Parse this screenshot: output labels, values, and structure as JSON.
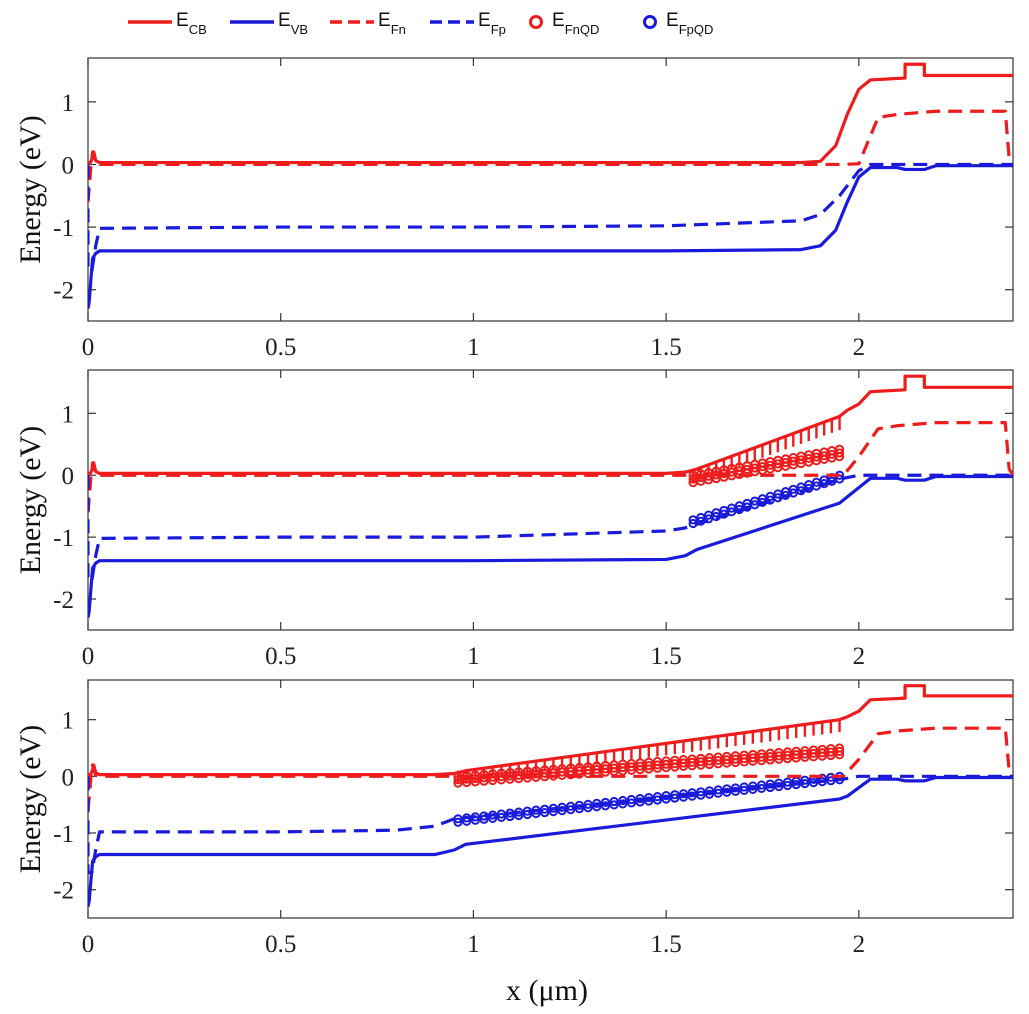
{
  "chart_data": {
    "type": "line",
    "title": "",
    "xlabel": "x (μm)",
    "ylabel": "Energy (eV)",
    "xlim": [
      0,
      2.4
    ],
    "ylim": [
      -2.5,
      1.7
    ],
    "x_ticks": [
      0,
      0.5,
      1,
      1.5,
      2
    ],
    "x_tick_labels": [
      "0",
      "0.5",
      "1",
      "1.5",
      "2"
    ],
    "y_ticks": [
      1,
      0,
      -1,
      -2
    ],
    "y_tick_labels": [
      "1",
      "0",
      "-1",
      "-2"
    ],
    "colors": {
      "cb": "#ee1c1c",
      "vb": "#1a1adc"
    },
    "legend": [
      {
        "base": "E",
        "sub": "CB",
        "style": "solid",
        "color": "#ee1c1c"
      },
      {
        "base": "E",
        "sub": "VB",
        "style": "solid",
        "color": "#1a1adc"
      },
      {
        "base": "E",
        "sub": "Fn",
        "style": "dashed",
        "color": "#ee1c1c"
      },
      {
        "base": "E",
        "sub": "Fp",
        "style": "dashed",
        "color": "#1a1adc"
      },
      {
        "base": "E",
        "sub": "FnQD",
        "style": "marker",
        "color": "#ee1c1c"
      },
      {
        "base": "E",
        "sub": "FpQD",
        "style": "marker",
        "color": "#1a1adc"
      }
    ],
    "panels": [
      {
        "series": [
          {
            "name": "E_CB",
            "x": [
              0,
              0.005,
              0.01,
              0.015,
              0.02,
              0.03,
              0.5,
              1.0,
              1.5,
              1.85,
              1.9,
              1.94,
              1.97,
              2.0,
              2.03,
              2.12,
              2.12,
              2.17,
              2.17,
              2.4
            ],
            "y": [
              0.03,
              0.02,
              0.08,
              0.2,
              0.06,
              0.03,
              0.03,
              0.03,
              0.03,
              0.03,
              0.05,
              0.3,
              0.8,
              1.2,
              1.35,
              1.38,
              1.6,
              1.6,
              1.42,
              1.42
            ]
          },
          {
            "name": "E_VB",
            "x": [
              0,
              0.003,
              0.008,
              0.012,
              0.02,
              0.03,
              0.5,
              1.0,
              1.5,
              1.85,
              1.9,
              1.94,
              1.97,
              2.0,
              2.03,
              2.06,
              2.1,
              2.12,
              2.17,
              2.2,
              2.4
            ],
            "y": [
              -2.3,
              -2.2,
              -1.8,
              -1.5,
              -1.42,
              -1.38,
              -1.38,
              -1.38,
              -1.38,
              -1.36,
              -1.3,
              -1.05,
              -0.6,
              -0.2,
              -0.05,
              -0.05,
              -0.05,
              -0.08,
              -0.08,
              -0.02,
              -0.02
            ]
          },
          {
            "name": "E_Fn",
            "x": [
              0,
              0.008,
              0.012,
              0.02,
              0.03,
              1.0,
              1.95,
              2.0,
              2.05,
              2.1,
              2.2,
              2.38,
              2.39,
              2.4
            ],
            "y": [
              -0.6,
              0.0,
              0.2,
              0.02,
              0.0,
              0.0,
              0.0,
              0.01,
              0.75,
              0.8,
              0.85,
              0.85,
              0.1,
              0.0
            ]
          },
          {
            "name": "E_Fp",
            "x": [
              0,
              0.0,
              0.01,
              0.02,
              0.03,
              0.5,
              1.0,
              1.5,
              1.85,
              1.9,
              1.95,
              2.0,
              2.03,
              2.1,
              2.4
            ],
            "y": [
              0.0,
              -1.7,
              -1.7,
              -1.3,
              -1.02,
              -1.0,
              -1.0,
              -0.98,
              -0.9,
              -0.8,
              -0.5,
              -0.1,
              0.0,
              0.0,
              0.0
            ]
          }
        ],
        "qd_region": null
      },
      {
        "series": [
          {
            "name": "E_CB",
            "x": [
              0,
              0.005,
              0.01,
              0.015,
              0.02,
              0.03,
              0.5,
              1.0,
              1.5,
              1.55,
              1.58,
              1.95,
              1.97,
              2.0,
              2.03,
              2.12,
              2.12,
              2.17,
              2.17,
              2.4
            ],
            "y": [
              0.03,
              0.02,
              0.08,
              0.2,
              0.06,
              0.03,
              0.03,
              0.03,
              0.03,
              0.05,
              0.1,
              0.95,
              1.05,
              1.15,
              1.35,
              1.38,
              1.6,
              1.6,
              1.42,
              1.42
            ]
          },
          {
            "name": "E_VB",
            "x": [
              0,
              0.003,
              0.008,
              0.012,
              0.02,
              0.03,
              0.5,
              1.0,
              1.5,
              1.55,
              1.58,
              1.95,
              1.97,
              2.0,
              2.03,
              2.06,
              2.1,
              2.12,
              2.17,
              2.2,
              2.4
            ],
            "y": [
              -2.3,
              -2.2,
              -1.8,
              -1.5,
              -1.42,
              -1.38,
              -1.38,
              -1.38,
              -1.36,
              -1.3,
              -1.2,
              -0.45,
              -0.35,
              -0.2,
              -0.05,
              -0.05,
              -0.05,
              -0.08,
              -0.08,
              -0.02,
              -0.02
            ]
          },
          {
            "name": "E_Fn",
            "x": [
              0,
              0.008,
              0.012,
              0.02,
              0.03,
              1.0,
              1.55,
              1.96,
              2.0,
              2.05,
              2.1,
              2.2,
              2.38,
              2.39,
              2.4
            ],
            "y": [
              -0.6,
              0.0,
              0.2,
              0.02,
              0.0,
              0.0,
              0.0,
              0.0,
              0.3,
              0.75,
              0.8,
              0.85,
              0.85,
              0.1,
              0.0
            ]
          },
          {
            "name": "E_Fp",
            "x": [
              0,
              0.0,
              0.01,
              0.02,
              0.03,
              0.5,
              1.0,
              1.5,
              1.55,
              1.96,
              2.0,
              2.03,
              2.1,
              2.4
            ],
            "y": [
              0.0,
              -1.7,
              -1.7,
              -1.3,
              -1.02,
              -1.0,
              -1.0,
              -0.9,
              -0.85,
              -0.05,
              0.0,
              0.0,
              0.0,
              0.0
            ]
          }
        ],
        "qd_region": {
          "x_start": 1.57,
          "x_end": 1.95,
          "count": 20,
          "fn_y_start": 0.0,
          "fn_y_end": 0.42,
          "fn_spread": 0.12,
          "fp_y_start": -0.72,
          "fp_y_end": 0.0,
          "cb_y_start": 0.1,
          "cb_y_end": 0.95
        }
      },
      {
        "series": [
          {
            "name": "E_CB",
            "x": [
              0,
              0.005,
              0.01,
              0.015,
              0.02,
              0.03,
              0.5,
              0.9,
              0.95,
              0.98,
              1.95,
              1.97,
              2.0,
              2.03,
              2.12,
              2.12,
              2.17,
              2.17,
              2.4
            ],
            "y": [
              0.03,
              0.02,
              0.08,
              0.2,
              0.06,
              0.03,
              0.03,
              0.03,
              0.05,
              0.1,
              1.0,
              1.05,
              1.15,
              1.35,
              1.38,
              1.6,
              1.6,
              1.42,
              1.42
            ]
          },
          {
            "name": "E_VB",
            "x": [
              0,
              0.003,
              0.008,
              0.012,
              0.02,
              0.03,
              0.5,
              0.9,
              0.95,
              0.98,
              1.95,
              1.97,
              2.0,
              2.03,
              2.06,
              2.1,
              2.12,
              2.17,
              2.2,
              2.4
            ],
            "y": [
              -2.3,
              -2.2,
              -1.8,
              -1.5,
              -1.42,
              -1.38,
              -1.38,
              -1.38,
              -1.3,
              -1.2,
              -0.4,
              -0.35,
              -0.2,
              -0.05,
              -0.05,
              -0.05,
              -0.08,
              -0.08,
              -0.02,
              -0.02
            ]
          },
          {
            "name": "E_Fn",
            "x": [
              0,
              0.008,
              0.012,
              0.02,
              0.03,
              0.5,
              0.95,
              1.96,
              2.0,
              2.05,
              2.1,
              2.2,
              2.38,
              2.39,
              2.4
            ],
            "y": [
              -0.6,
              0.0,
              0.2,
              0.02,
              0.0,
              0.0,
              0.0,
              0.0,
              0.3,
              0.75,
              0.8,
              0.85,
              0.85,
              0.1,
              0.0
            ]
          },
          {
            "name": "E_Fp",
            "x": [
              0,
              0.0,
              0.01,
              0.02,
              0.03,
              0.5,
              0.8,
              0.9,
              0.95,
              1.96,
              2.0,
              2.03,
              2.1,
              2.4
            ],
            "y": [
              0.0,
              -1.7,
              -1.7,
              -1.3,
              -0.98,
              -0.98,
              -0.95,
              -0.88,
              -0.75,
              -0.05,
              0.0,
              0.0,
              0.0,
              0.0
            ]
          }
        ],
        "qd_region": {
          "x_start": 0.96,
          "x_end": 1.95,
          "count": 45,
          "fn_y_start": 0.0,
          "fn_y_end": 0.5,
          "fn_spread": 0.12,
          "fp_y_start": -0.75,
          "fp_y_end": 0.0,
          "cb_y_start": 0.1,
          "cb_y_end": 1.0
        }
      }
    ]
  }
}
